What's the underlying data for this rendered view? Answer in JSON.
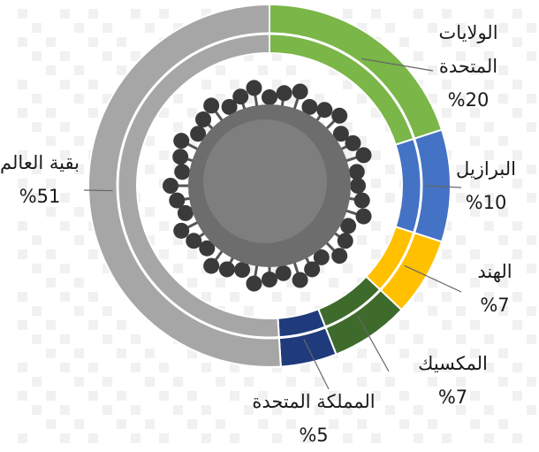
{
  "chart_data": {
    "type": "pie",
    "categories": [
      "الولايات المتحدة",
      "البرازيل",
      "الهند",
      "المكسيك",
      "المملكة المتحدة",
      "بقية العالم"
    ],
    "values": [
      20,
      10,
      7,
      7,
      5,
      51
    ],
    "value_labels": [
      "%20",
      "%10",
      "%7",
      "%7",
      "%5",
      "%51"
    ],
    "colors": [
      "#7ab648",
      "#4472c4",
      "#ffc000",
      "#3e6b2b",
      "#1f3b7c",
      "#a6a6a6"
    ]
  }
}
